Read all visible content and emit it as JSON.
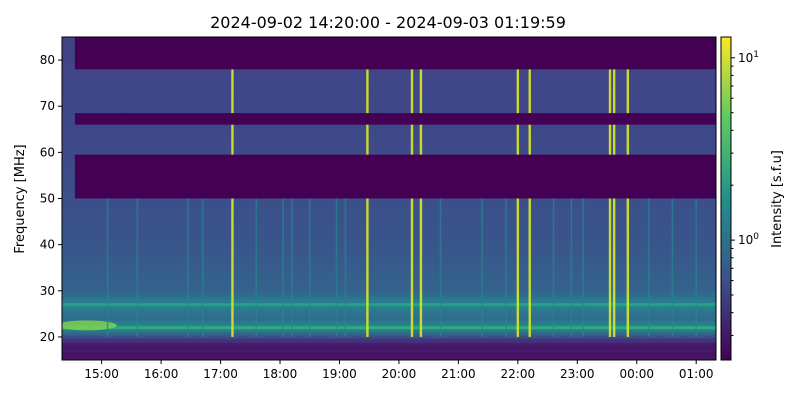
{
  "chart_data": {
    "type": "heatmap",
    "title": "2024-09-02 14:20:00 - 2024-09-03 01:19:59",
    "ylabel": "Frequency [MHz]",
    "xlabel": "",
    "x_range": [
      "2024-09-02 14:20:00",
      "2024-09-03 01:19:59"
    ],
    "xlim_hours": [
      14.333,
      25.333
    ],
    "xticks": [
      {
        "hour": 15,
        "label": "15:00"
      },
      {
        "hour": 16,
        "label": "16:00"
      },
      {
        "hour": 17,
        "label": "17:00"
      },
      {
        "hour": 18,
        "label": "18:00"
      },
      {
        "hour": 19,
        "label": "19:00"
      },
      {
        "hour": 20,
        "label": "20:00"
      },
      {
        "hour": 21,
        "label": "21:00"
      },
      {
        "hour": 22,
        "label": "22:00"
      },
      {
        "hour": 23,
        "label": "23:00"
      },
      {
        "hour": 24,
        "label": "00:00"
      },
      {
        "hour": 25,
        "label": "01:00"
      }
    ],
    "ylim": [
      15,
      85
    ],
    "yticks": [
      20,
      30,
      40,
      50,
      60,
      70,
      80
    ],
    "colorbar": {
      "label": "Intensity [s.f.u]",
      "scale": "log",
      "range": [
        0.22,
        13
      ],
      "ticks": [
        {
          "value": 1,
          "label": "10^0"
        },
        {
          "value": 10,
          "label": "10^1"
        }
      ],
      "colormap": "viridis",
      "colors": [
        "#440154",
        "#3b528b",
        "#21918c",
        "#5ec962",
        "#fde725"
      ]
    },
    "masked_bands_mhz": [
      [
        78,
        85
      ],
      [
        66,
        68.5
      ],
      [
        50,
        59.5
      ]
    ],
    "masked_time_start_hour": 14.55,
    "bright_bursts_hours": [
      17.2,
      19.47,
      20.22,
      20.37,
      22.0,
      22.2,
      23.55,
      23.62,
      23.85
    ],
    "faint_bursts_hours": [
      15.1,
      15.6,
      16.45,
      16.7,
      17.6,
      18.05,
      18.2,
      18.5,
      18.95,
      19.1,
      20.7,
      21.4,
      21.8,
      22.6,
      22.9,
      23.1,
      24.2,
      24.6,
      25.0
    ],
    "horizontal_bands_mhz": [
      {
        "mhz": 27,
        "intensity": 2.5
      },
      {
        "mhz": 22,
        "intensity": 3.0
      },
      {
        "mhz": 19,
        "intensity": 0.4
      },
      {
        "mhz": 17,
        "intensity": 0.3
      }
    ]
  }
}
